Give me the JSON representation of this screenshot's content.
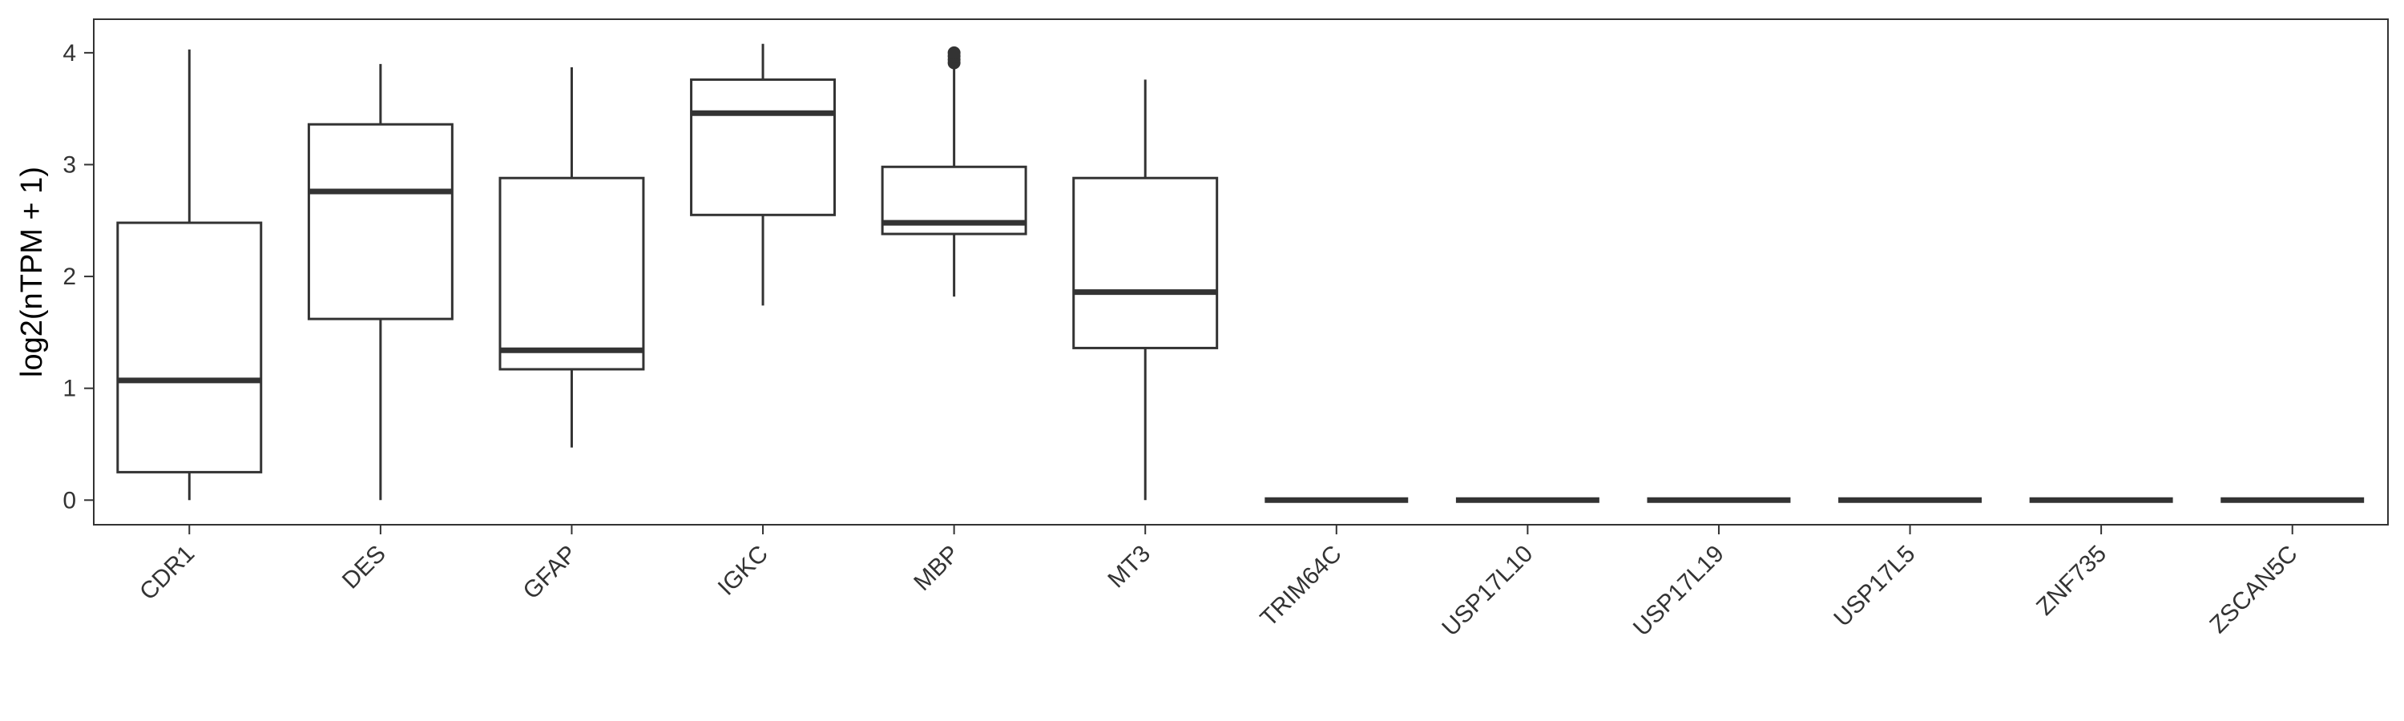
{
  "chart_data": {
    "type": "boxplot",
    "ylabel": "log2(nTPM + 1)",
    "xlabel": "",
    "ylim": [
      -0.22,
      4.3
    ],
    "yticks": [
      0,
      1,
      2,
      3,
      4
    ],
    "grid": false,
    "categories": [
      "CDR1",
      "DES",
      "GFAP",
      "IGKC",
      "MBP",
      "MT3",
      "TRIM64C",
      "USP17L10",
      "USP17L19",
      "USP17L5",
      "ZNF735",
      "ZSCAN5C"
    ],
    "boxes": [
      {
        "name": "CDR1",
        "min": 0.0,
        "q1": 0.25,
        "median": 1.07,
        "q3": 2.48,
        "max": 4.03,
        "outliers": []
      },
      {
        "name": "DES",
        "min": 0.0,
        "q1": 1.62,
        "median": 2.76,
        "q3": 3.36,
        "max": 3.9,
        "outliers": []
      },
      {
        "name": "GFAP",
        "min": 0.47,
        "q1": 1.17,
        "median": 1.34,
        "q3": 2.88,
        "max": 3.87,
        "outliers": []
      },
      {
        "name": "IGKC",
        "min": 1.74,
        "q1": 2.55,
        "median": 3.46,
        "q3": 3.76,
        "max": 4.08,
        "outliers": []
      },
      {
        "name": "MBP",
        "min": 1.82,
        "q1": 2.38,
        "median": 2.48,
        "q3": 2.98,
        "max": 3.88,
        "outliers": [
          3.91,
          3.94,
          3.97,
          4.0
        ]
      },
      {
        "name": "MT3",
        "min": 0.0,
        "q1": 1.36,
        "median": 1.86,
        "q3": 2.88,
        "max": 3.76,
        "outliers": []
      },
      {
        "name": "TRIM64C",
        "min": 0,
        "q1": 0,
        "median": 0,
        "q3": 0,
        "max": 0,
        "outliers": []
      },
      {
        "name": "USP17L10",
        "min": 0,
        "q1": 0,
        "median": 0,
        "q3": 0,
        "max": 0,
        "outliers": []
      },
      {
        "name": "USP17L19",
        "min": 0,
        "q1": 0,
        "median": 0,
        "q3": 0,
        "max": 0,
        "outliers": []
      },
      {
        "name": "USP17L5",
        "min": 0,
        "q1": 0,
        "median": 0,
        "q3": 0,
        "max": 0,
        "outliers": []
      },
      {
        "name": "ZNF735",
        "min": 0,
        "q1": 0,
        "median": 0,
        "q3": 0,
        "max": 0,
        "outliers": []
      },
      {
        "name": "ZSCAN5C",
        "min": 0,
        "q1": 0,
        "median": 0,
        "q3": 0,
        "max": 0,
        "outliers": []
      }
    ],
    "colors": {
      "stroke": "#333333",
      "fill": "#ffffff",
      "panel_border": "#333333"
    }
  }
}
